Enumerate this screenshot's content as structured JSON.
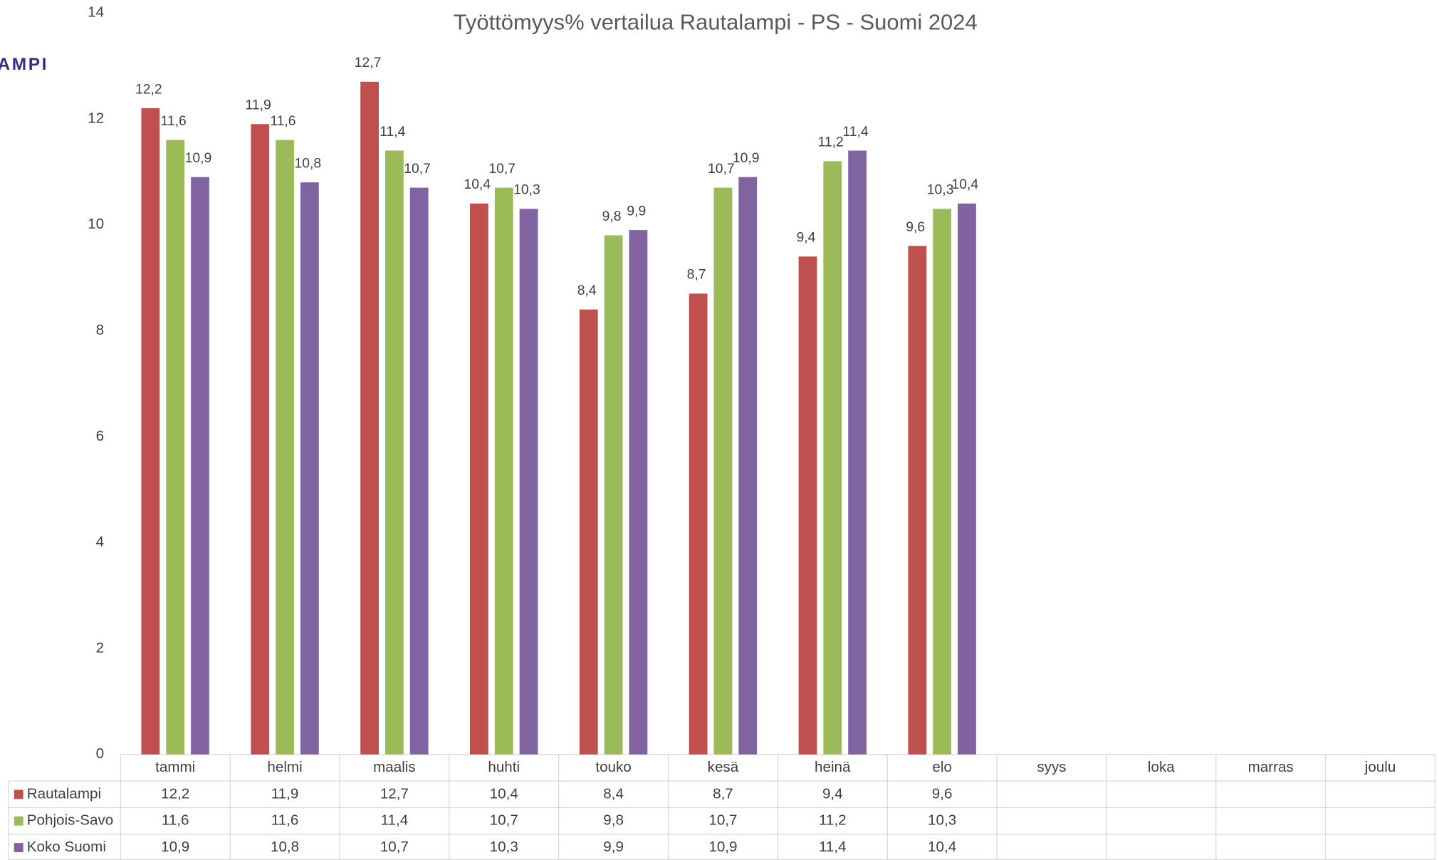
{
  "logo": "AMPI",
  "chart_data": {
    "type": "bar",
    "title": "Työttömyys% vertailua Rautalampi - PS - Suomi 2024",
    "categories": [
      "tammi",
      "helmi",
      "maalis",
      "huhti",
      "touko",
      "kesä",
      "heinä",
      "elo",
      "syys",
      "loka",
      "marras",
      "joulu"
    ],
    "series": [
      {
        "name": "Rautalampi",
        "color": "#c0504d",
        "values": [
          12.2,
          11.9,
          12.7,
          10.4,
          8.4,
          8.7,
          9.4,
          9.6,
          null,
          null,
          null,
          null
        ],
        "value_labels": [
          "12,2",
          "11,9",
          "12,7",
          "10,4",
          "8,4",
          "8,7",
          "9,4",
          "9,6",
          null,
          null,
          null,
          null
        ]
      },
      {
        "name": "Pohjois-Savo",
        "color": "#9bbb59",
        "values": [
          11.6,
          11.6,
          11.4,
          10.7,
          9.8,
          10.7,
          11.2,
          10.3,
          null,
          null,
          null,
          null
        ],
        "value_labels": [
          "11,6",
          "11,6",
          "11,4",
          "10,7",
          "9,8",
          "10,7",
          "11,2",
          "10,3",
          null,
          null,
          null,
          null
        ]
      },
      {
        "name": "Koko Suomi",
        "color": "#8064a2",
        "values": [
          10.9,
          10.8,
          10.7,
          10.3,
          9.9,
          10.9,
          11.4,
          10.4,
          null,
          null,
          null,
          null
        ],
        "value_labels": [
          "10,9",
          "10,8",
          "10,7",
          "10,3",
          "9,9",
          "10,9",
          "11,4",
          "10,4",
          null,
          null,
          null,
          null
        ]
      }
    ],
    "ylim": [
      0,
      14
    ],
    "yticks": [
      0,
      2,
      4,
      6,
      8,
      10,
      12,
      14
    ],
    "grid": false,
    "data_table": true
  }
}
